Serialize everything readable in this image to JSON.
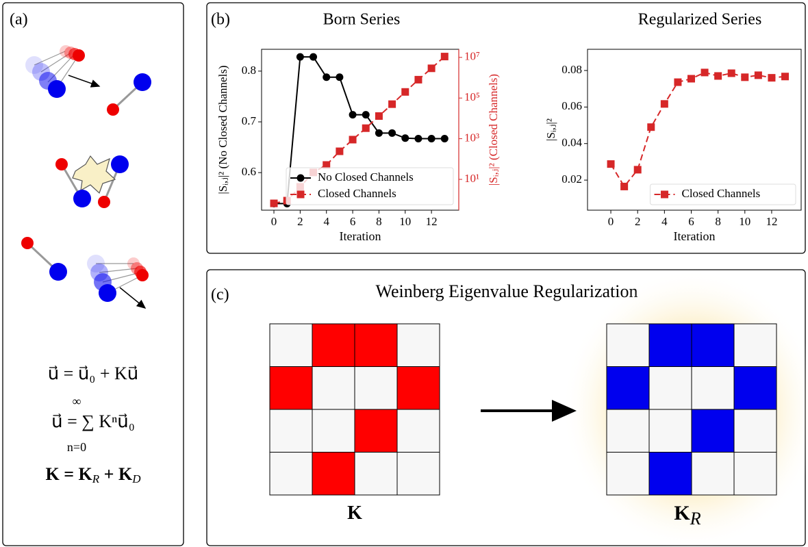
{
  "panels": {
    "a": "(a)",
    "b": "(b)",
    "c": "(c)"
  },
  "equations": {
    "eq1": "u⃗ = u⃗₀ + Ku⃗",
    "eq2": "u⃗ = ∑ Kⁿu⃗₀",
    "eq2_upper": "∞",
    "eq2_lower": "n=0",
    "eq3": [
      "K = K",
      "R",
      " + K",
      "D"
    ]
  },
  "regularization": {
    "title": "Weinberg Eigenvalue Regularization",
    "left_label": [
      "K"
    ],
    "right_label": [
      "K",
      "R"
    ]
  },
  "chart_data": [
    {
      "type": "line",
      "title": "Born Series",
      "x_label": "Iteration",
      "y_label": "|Sᵢ,ⱼ|² (No Closed Channels)",
      "y2_label": "|Sᵢ,ⱼ|² (Closed Channels)",
      "x": [
        0,
        1,
        2,
        3,
        4,
        5,
        6,
        7,
        8,
        9,
        10,
        11,
        12,
        13
      ],
      "xlim": [
        -0.94,
        14.08
      ],
      "xticks": [
        0,
        2,
        4,
        6,
        8,
        10,
        12
      ],
      "ylim": [
        0.526,
        0.843
      ],
      "yticks": [
        0.6,
        0.7,
        0.8
      ],
      "y2lim": [
        0.305,
        25000000
      ],
      "y2scale": "log",
      "y2ticks": [
        {
          "value": 10,
          "label": "10¹"
        },
        {
          "value": 1000,
          "label": "10³"
        },
        {
          "value": 100000,
          "label": "10⁵"
        },
        {
          "value": 10000000,
          "label": "10⁷"
        }
      ],
      "y2color": "#d62728",
      "legend": "lower right",
      "series": [
        {
          "name": "No Closed Channels",
          "color": "#000000",
          "marker": "circle",
          "dash": false,
          "values": [
            0.539,
            0.539,
            0.828,
            0.828,
            0.788,
            0.788,
            0.714,
            0.714,
            0.678,
            0.678,
            0.668,
            0.667,
            0.667,
            0.667
          ]
        },
        {
          "name": "Closed Channels",
          "color": "#d62728",
          "marker": "square",
          "dash": true,
          "axis": "y2",
          "values": [
            0.66,
            0.9,
            4.3,
            22,
            51,
            240,
            900,
            3300,
            13000,
            50000,
            200000,
            800000,
            2900000,
            11000000
          ]
        }
      ]
    },
    {
      "type": "line",
      "title": "Regularized Series",
      "x_label": "Iteration",
      "y_label": "|Sᵢ,ⱼ|²",
      "x": [
        0,
        1,
        2,
        3,
        4,
        5,
        6,
        7,
        8,
        9,
        10,
        11,
        12,
        13
      ],
      "xlim": [
        -1.74,
        14.2
      ],
      "xticks": [
        0,
        2,
        4,
        6,
        8,
        10,
        12
      ],
      "ylim": [
        0.00355,
        0.0916
      ],
      "yticks": [
        0.02,
        0.04,
        0.06,
        0.08
      ],
      "legend": "lower right",
      "series": [
        {
          "name": "Closed Channels",
          "color": "#d62728",
          "marker": "square",
          "dash": true,
          "values": [
            0.0288,
            0.0165,
            0.0257,
            0.049,
            0.0617,
            0.0736,
            0.0755,
            0.0789,
            0.077,
            0.0785,
            0.0763,
            0.0774,
            0.076,
            0.0767
          ]
        }
      ]
    }
  ]
}
